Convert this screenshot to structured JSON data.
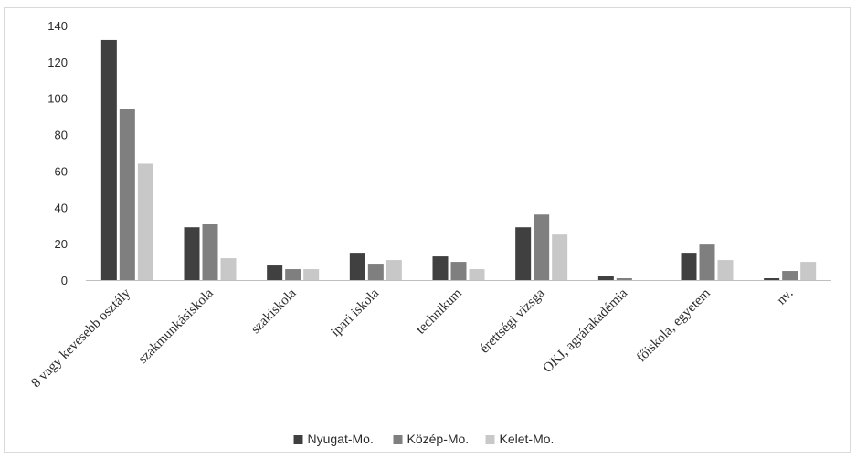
{
  "chart_data": {
    "type": "bar",
    "categories": [
      "8 vagy kevesebb osztály",
      "szakmunkásiskola",
      "szakiskola",
      "ipari iskola",
      "technikum",
      "érettségi vizsga",
      "OKJ, agrárakadémia",
      "főiskola, egyetem",
      "nv."
    ],
    "series": [
      {
        "name": "Nyugat-Mo.",
        "color": "#404040",
        "values": [
          132,
          29,
          8,
          15,
          13,
          29,
          2,
          15,
          1
        ]
      },
      {
        "name": "Közép-Mo.",
        "color": "#7f7f7f",
        "values": [
          94,
          31,
          6,
          9,
          10,
          36,
          1,
          20,
          5
        ]
      },
      {
        "name": "Kelet-Mo.",
        "color": "#c8c8c8",
        "values": [
          64,
          12,
          6,
          11,
          6,
          25,
          0,
          11,
          10
        ]
      }
    ],
    "ylim": [
      0,
      140
    ],
    "yticks": [
      0,
      20,
      40,
      60,
      80,
      100,
      120,
      140
    ],
    "grid": false,
    "legend_position": "bottom",
    "title": "",
    "xlabel": "",
    "ylabel": ""
  }
}
